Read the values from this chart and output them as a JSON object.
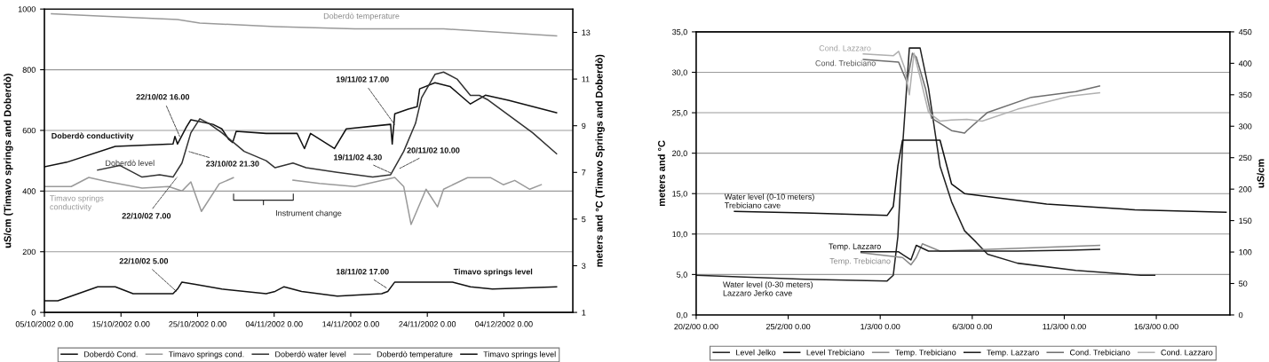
{
  "chart_data": [
    {
      "type": "line",
      "ylabel": "uS/cm (Timavo springs and Doberdò)",
      "y2label": "meters and °C (Timavo Springs and Doberdò)",
      "xlim": [
        "2002-10-05",
        "2002-12-13"
      ],
      "xticks": [
        {
          "value": "2002-10-05",
          "label": "05/10/2002 0.00"
        },
        {
          "value": "2002-10-15",
          "label": "15/10/2002 0.00"
        },
        {
          "value": "2002-10-25",
          "label": "25/10/2002 0.00"
        },
        {
          "value": "2002-11-04",
          "label": "04/11/2002 0.00"
        },
        {
          "value": "2002-11-14",
          "label": "14/11/2002 0.00"
        },
        {
          "value": "2002-11-24",
          "label": "24/11/2002 0.00"
        },
        {
          "value": "2002-12-04",
          "label": "04/12/2002 0.00"
        }
      ],
      "ylim": [
        0,
        1000
      ],
      "yticks": [
        0,
        200,
        400,
        600,
        800,
        1000
      ],
      "y2lim": [
        1,
        14
      ],
      "y2ticks": [
        1,
        3,
        5,
        7,
        9,
        11,
        13
      ],
      "grid": "y",
      "legend": "bottom",
      "series": [
        {
          "name": "Doberdò Cond.",
          "color": "#111111",
          "x": [
            "2002-10-05T00:00",
            "2002-10-07T22:00",
            "2002-10-14T06:00",
            "2002-10-21T19:00",
            "2002-10-22T01:00",
            "2002-10-22T09:00",
            "2002-10-23T13:00",
            "2002-10-24T03:00",
            "2002-10-27T00:00",
            "2002-10-28T04:00",
            "2002-10-29T02:00",
            "2002-10-29T14:00",
            "2002-10-30T01:00",
            "2002-11-02T23:00",
            "2002-11-07T00:00",
            "2002-11-07T23:00",
            "2002-11-08T18:00",
            "2002-11-11T21:00",
            "2002-11-13T10:00",
            "2002-11-19T05:00",
            "2002-11-19T10:00",
            "2002-11-19T18:00",
            "2002-11-21T12:00",
            "2002-11-22T16:00",
            "2002-11-23T00:00",
            "2002-11-25T00:00",
            "2002-11-26T23:00",
            "2002-11-29T15:00",
            "2002-12-01T14:00",
            "2002-12-04T14:00",
            "2002-12-10T21:00"
          ],
          "values": [
            480,
            495,
            547,
            555,
            580,
            555,
            611,
            635,
            620,
            605,
            570,
            560,
            597,
            590,
            590,
            540,
            590,
            540,
            605,
            620,
            555,
            655,
            670,
            678,
            737,
            757,
            745,
            687,
            716,
            699,
            658
          ]
        },
        {
          "name": "Timavo springs cond.",
          "color": "#9a9a9a",
          "x": [
            "2002-10-05T00:00",
            "2002-10-08T12:00",
            "2002-10-10T19:00",
            "2002-10-13T03:00",
            "2002-10-17T18:00",
            "2002-10-21T05:00",
            "2002-10-22T23:00",
            "2002-10-24T03:00",
            "2002-10-25T12:00",
            "2002-10-27T20:00",
            "2002-10-29T16:00",
            "2002-10-31T02:00",
            "2002-11-06T11:00",
            "2002-11-09T22:00",
            "2002-11-14T13:00",
            "2002-11-19T18:00",
            "2002-11-20T22:00",
            "2002-11-21T21:00",
            "2002-11-23T20:00",
            "2002-11-25T08:00",
            "2002-11-26T03:00",
            "2002-11-29T06:00",
            "2002-12-02T07:00",
            "2002-12-03T22:00",
            "2002-12-05T10:00",
            "2002-12-07T09:00",
            "2002-12-08T21:00"
          ],
          "values": [
            415,
            415,
            445,
            432,
            410,
            415,
            400,
            430,
            333,
            424,
            444,
            null,
            436,
            425,
            415,
            445,
            415,
            290,
            406,
            348,
            406,
            444,
            444,
            421,
            435,
            406,
            421
          ]
        },
        {
          "name": "Doberdò water level",
          "color": "#333333",
          "axis": "y2",
          "x": [
            "2002-10-11T23:00",
            "2002-10-14T20:00",
            "2002-10-17T18:00",
            "2002-10-20T01:00",
            "2002-10-21T19:00",
            "2002-10-22T23:00",
            "2002-10-24T03:00",
            "2002-10-25T07:00",
            "2002-10-26T11:00",
            "2002-10-28T04:00",
            "2002-10-31T02:00",
            "2002-11-02T23:00",
            "2002-11-04T03:00",
            "2002-11-06T11:00",
            "2002-11-08T04:00",
            "2002-11-12T06:00",
            "2002-11-16T21:00",
            "2002-11-19T05:00",
            "2002-11-20T22:00",
            "2002-11-22T11:00",
            "2002-11-23T06:00",
            "2002-11-25T00:00",
            "2002-11-26T03:00",
            "2002-11-27T21:00",
            "2002-11-29T15:00",
            "2002-11-30T19:00",
            "2002-12-01T23:00",
            "2002-12-04T20:00",
            "2002-12-07T18:00",
            "2002-12-10T21:00"
          ],
          "values": [
            7.1,
            7.3,
            6.8,
            6.9,
            6.8,
            7.4,
            8.7,
            9.3,
            9.1,
            8.7,
            7.9,
            7.5,
            7.2,
            7.4,
            7.2,
            7.0,
            6.8,
            6.9,
            7.9,
            9.1,
            10.2,
            11.2,
            11.3,
            11.0,
            10.3,
            10.3,
            10.1,
            9.4,
            8.7,
            7.8
          ]
        },
        {
          "name": "Doberdò temperature",
          "color": "#9a9a9a",
          "axis": "y2",
          "x": [
            "2002-10-05T22:00",
            "2002-10-12T00:00",
            "2002-10-22T09:00",
            "2002-10-25T07:00",
            "2002-11-04T03:00",
            "2002-11-14T13:00",
            "2002-11-26T03:00",
            "2002-12-10T21:00"
          ],
          "values": [
            13.8,
            13.7,
            13.55,
            13.4,
            13.25,
            13.15,
            13.15,
            12.85
          ]
        },
        {
          "name": "Timavo springs level",
          "color": "#111111",
          "axis": "y2",
          "x": [
            "2002-10-05T00:00",
            "2002-10-06T18:00",
            "2002-10-08T12:00",
            "2002-10-11T23:00",
            "2002-10-14T06:00",
            "2002-10-16T14:00",
            "2002-10-18T22:00",
            "2002-10-21T19:00",
            "2002-10-22T09:00",
            "2002-10-22T23:00",
            "2002-10-24T17:00",
            "2002-10-28T04:00",
            "2002-11-02T23:00",
            "2002-11-04T03:00",
            "2002-11-05T07:00",
            "2002-11-07T14:00",
            "2002-11-12T06:00",
            "2002-11-18T01:00",
            "2002-11-18T20:00",
            "2002-11-19T18:00",
            "2002-11-23T20:00",
            "2002-11-27T07:00",
            "2002-11-29T15:00",
            "2002-12-02T12:00",
            "2002-12-10T21:00"
          ],
          "values": [
            1.5,
            1.5,
            1.7,
            2.1,
            2.1,
            1.8,
            1.8,
            1.8,
            2.0,
            2.3,
            2.2,
            2.0,
            1.8,
            1.9,
            2.1,
            1.9,
            1.7,
            1.8,
            1.9,
            2.3,
            2.3,
            2.3,
            2.1,
            2.0,
            2.1
          ]
        }
      ],
      "annotations": [
        "Doberdò temperature",
        "Doberdò conductivity",
        "Doberdò level",
        "Timavo springs\nconductivity",
        "Instrument change",
        {
          "text": "22/10/02 16.00",
          "x": "2002-10-22T16:00",
          "y": 580
        },
        {
          "text": "23/10/02 21.30",
          "x": "2002-10-23T21:30",
          "y": 530
        },
        {
          "text": "22/10/02 7.00",
          "x": "2002-10-22T07:00",
          "y": 445
        },
        {
          "text": "22/10/02 5.00",
          "x": "2002-10-22T05:00",
          "y": 70
        },
        {
          "text": "19/11/02 17.00",
          "x": "2002-11-19T17:00",
          "y": 620
        },
        {
          "text": "19/11/02 4.30",
          "x": "2002-11-19T04:30",
          "y": 460
        },
        {
          "text": "20/11/02 10.00",
          "x": "2002-11-20T10:00",
          "y": 475
        },
        {
          "text": "18/11/02 17.00",
          "x": "2002-11-18T17:00",
          "y": 80
        },
        "Timavo springs level"
      ]
    },
    {
      "type": "line",
      "ylabel": "meters and °C",
      "y2label": "uS/cm",
      "xlim": [
        "2000-02-20",
        "2000-03-20"
      ],
      "xticks": [
        {
          "value": "2000-02-20",
          "label": "20/2/00 0.00"
        },
        {
          "value": "2000-02-25",
          "label": "25/2/00 0.00"
        },
        {
          "value": "2000-03-01",
          "label": "1/3/00 0.00"
        },
        {
          "value": "2000-03-06",
          "label": "6/3/00 0.00"
        },
        {
          "value": "2000-03-11",
          "label": "11/3/00 0.00"
        },
        {
          "value": "2000-03-16",
          "label": "16/3/00 0.00"
        }
      ],
      "ylim": [
        0,
        35
      ],
      "yticks": [
        {
          "value": 0,
          "label": "0,0"
        },
        {
          "value": 5,
          "label": "5,0"
        },
        {
          "value": 10,
          "label": "10,0"
        },
        {
          "value": 15,
          "label": "15,0"
        },
        {
          "value": 20,
          "label": "20,0"
        },
        {
          "value": 25,
          "label": "25,0"
        },
        {
          "value": 30,
          "label": "30,0"
        },
        {
          "value": 35,
          "label": "35,0"
        }
      ],
      "y2lim": [
        0,
        450
      ],
      "y2ticks": [
        0,
        50,
        100,
        150,
        200,
        250,
        300,
        350,
        400,
        450
      ],
      "grid": "y",
      "legend": "bottom",
      "series": [
        {
          "name": "Level Jelko",
          "color": "#222222",
          "x": [
            "2000-02-20T00:00",
            "2000-02-25T22:00",
            "2000-03-01T09:00",
            "2000-03-01T17:00",
            "2000-03-01T23:00",
            "2000-03-02T05:00",
            "2000-03-02T14:00",
            "2000-03-03T04:00",
            "2000-03-03T15:00",
            "2000-03-04T06:00",
            "2000-03-04T21:00",
            "2000-03-05T14:00",
            "2000-03-06T05:00",
            "2000-03-06T20:00",
            "2000-03-08T11:00",
            "2000-03-11T15:00",
            "2000-03-15T04:00",
            "2000-03-15T22:00"
          ],
          "values": [
            4.9,
            4.4,
            4.2,
            4.9,
            9.7,
            20.6,
            33.0,
            33.0,
            28.0,
            18.4,
            14.0,
            10.4,
            9.0,
            7.5,
            6.4,
            5.5,
            4.9,
            4.9
          ]
        },
        {
          "name": "Level Trebiciano",
          "color": "#111111",
          "x": [
            "2000-02-22T02:00",
            "2000-02-25T22:00",
            "2000-03-01T09:00",
            "2000-03-01T17:00",
            "2000-03-01T23:00",
            "2000-03-02T05:00",
            "2000-03-04T06:00",
            "2000-03-04T21:00",
            "2000-03-05T14:00",
            "2000-03-10T01:00",
            "2000-03-14T20:00",
            "2000-03-19T19:00"
          ],
          "values": [
            12.8,
            12.6,
            12.3,
            13.4,
            18.4,
            21.6,
            21.6,
            16.2,
            15.0,
            13.7,
            13.0,
            12.7
          ]
        },
        {
          "name": "Temp. Trebiciano",
          "color": "#8a8a8a",
          "x": [
            "2000-02-28T23:00",
            "2000-03-02T05:00",
            "2000-03-02T16:00",
            "2000-03-02T23:00",
            "2000-03-03T07:00",
            "2000-03-04T06:00",
            "2000-03-12T22:00"
          ],
          "values": [
            7.7,
            7.1,
            6.2,
            7.1,
            8.8,
            7.9,
            8.6
          ]
        },
        {
          "name": "Temp. Lazzaro",
          "color": "#1a1a1a",
          "x": [
            "2000-02-28T23:00",
            "2000-03-02T00:00",
            "2000-03-02T16:00",
            "2000-03-02T23:00",
            "2000-03-03T15:00",
            "2000-03-05T17:00",
            "2000-03-08T11:00",
            "2000-03-11T08:00",
            "2000-03-12T22:00"
          ],
          "values": [
            7.8,
            7.8,
            6.8,
            8.6,
            7.9,
            7.9,
            7.9,
            8.0,
            8.1
          ]
        },
        {
          "name": "Cond. Trebiciano",
          "color": "#6e6e6e",
          "axis": "y2",
          "x": [
            "2000-02-29T02:00",
            "2000-03-02T00:00",
            "2000-03-02T11:00",
            "2000-03-02T18:00",
            "2000-03-02T23:00",
            "2000-03-03T11:00",
            "2000-03-03T19:00",
            "2000-03-04T21:00",
            "2000-03-05T14:00",
            "2000-03-05T17:00",
            "2000-03-06T20:00",
            "2000-03-09T05:00",
            "2000-03-11T15:00",
            "2000-03-12T22:00"
          ],
          "values": [
            406,
            402,
            370,
            416,
            410,
            360,
            313,
            293,
            289,
            293,
            322,
            346,
            355,
            364
          ]
        },
        {
          "name": "Cond. Lazzaro",
          "color": "#b0b0b0",
          "axis": "y2",
          "x": [
            "2000-02-29T02:00",
            "2000-03-01T17:00",
            "2000-03-02T00:00",
            "2000-03-02T08:00",
            "2000-03-02T14:00",
            "2000-03-02T20:00",
            "2000-03-03T04:00",
            "2000-03-03T15:00",
            "2000-03-04T06:00",
            "2000-03-04T21:00",
            "2000-03-05T17:00",
            "2000-03-06T13:00",
            "2000-03-08T11:00",
            "2000-03-11T08:00",
            "2000-03-12T22:00"
          ],
          "values": [
            415,
            412,
            419,
            392,
            350,
            416,
            378,
            322,
            308,
            310,
            311,
            308,
            327,
            348,
            353
          ]
        }
      ],
      "annotations": [
        "Cond. Lazzaro",
        "Cond. Trebiciano",
        "Water level (0-10 meters)\nTrebiciano cave",
        "Temp. Lazzaro",
        "Temp. Trebiciano",
        "Water level (0-30 meters)\nLazzaro Jerko cave"
      ]
    }
  ]
}
